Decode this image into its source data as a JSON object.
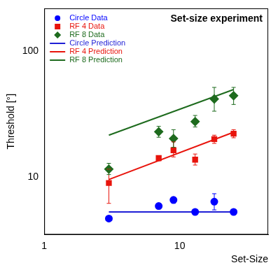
{
  "chart_data": {
    "type": "scatter",
    "title": "Set-size experiment",
    "x_label": "Set-Size",
    "y_label": "Threshold [°]",
    "log": true,
    "grid": false,
    "legend": "top-left",
    "xlim": [
      1,
      45
    ],
    "ylim": [
      3.5,
      220
    ],
    "xticks": [
      1,
      10
    ],
    "yticks": [
      10,
      100
    ],
    "series": [
      {
        "name": "Circle Data",
        "type": "scatter",
        "color": "#0000ff",
        "marker": "circle",
        "line_style": "none",
        "x": [
          3,
          7,
          9,
          13,
          18,
          25
        ],
        "values": [
          4.7,
          5.9,
          6.6,
          5.3,
          6.4,
          5.3
        ],
        "error_low": [
          null,
          5.6,
          6.2,
          null,
          5.5,
          null
        ],
        "error_high": [
          null,
          6.2,
          6.9,
          null,
          7.4,
          null
        ]
      },
      {
        "name": "RF 4 Data",
        "type": "scatter",
        "color": "#e8140c",
        "marker": "square",
        "line_style": "none",
        "x": [
          3,
          7,
          9,
          13,
          18,
          25
        ],
        "values": [
          9.0,
          14.2,
          16.4,
          13.8,
          20.1,
          22.2
        ],
        "error_low": [
          6.2,
          13.5,
          14.5,
          12.5,
          18.6,
          20.6
        ],
        "error_high": [
          11.6,
          14.8,
          19.1,
          15.3,
          21.6,
          23.9
        ]
      },
      {
        "name": "RF 8 Data",
        "type": "scatter",
        "color": "#1e6b1e",
        "marker": "diamond",
        "line_style": "none",
        "x": [
          3,
          7,
          9,
          13,
          18,
          25
        ],
        "values": [
          11.6,
          23.0,
          20.3,
          27.7,
          41.9,
          44.5
        ],
        "error_low": [
          10.5,
          20.8,
          17.3,
          25.1,
          33.5,
          37.9
        ],
        "error_high": [
          12.9,
          25.4,
          23.9,
          31.0,
          51.8,
          51.8
        ]
      },
      {
        "name": "Circle Prediction",
        "type": "line",
        "color": "#1f1fd6",
        "marker": "none",
        "line_style": "solid",
        "x": [
          3,
          25
        ],
        "values": [
          5.3,
          5.3
        ]
      },
      {
        "name": "RF 4 Prediction",
        "type": "line",
        "color": "#e8140c",
        "marker": "none",
        "line_style": "solid",
        "x": [
          3,
          25
        ],
        "values": [
          9.6,
          22.8
        ]
      },
      {
        "name": "RF 8 Prediction",
        "type": "line",
        "color": "#1e6b1e",
        "marker": "none",
        "line_style": "solid",
        "x": [
          3,
          25
        ],
        "values": [
          21.6,
          49.8
        ]
      }
    ]
  }
}
